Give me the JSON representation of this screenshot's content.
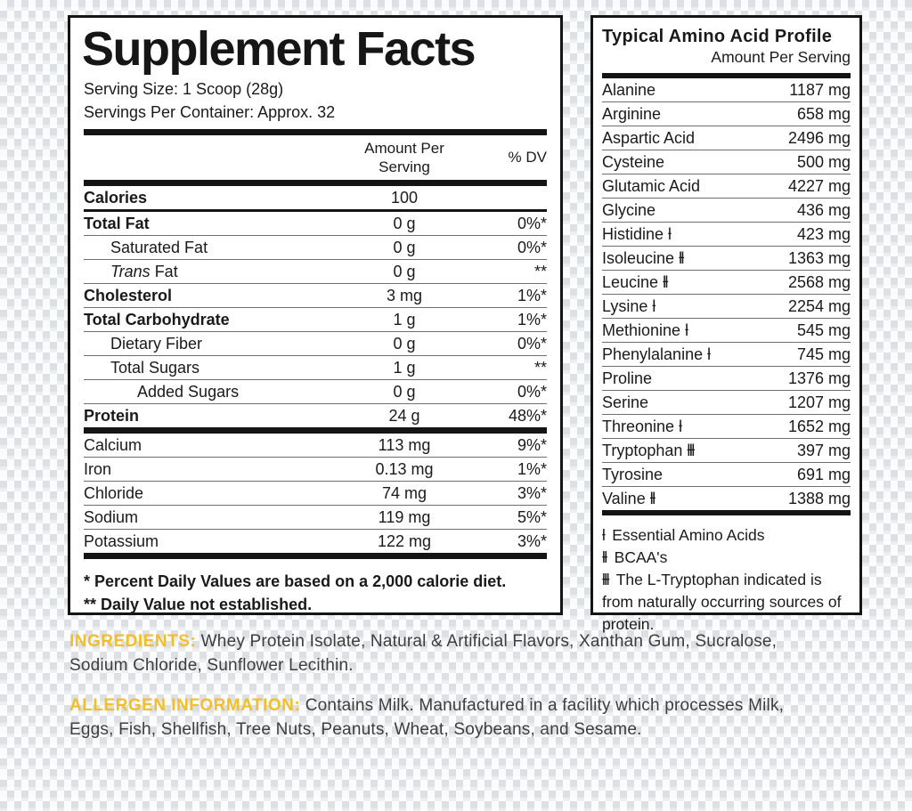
{
  "colors": {
    "gold": "#F2BF2A",
    "body_text": "#3d3d3d",
    "line": "#141414"
  },
  "supplement_facts": {
    "title": "Supplement Facts",
    "serving_size": "Serving Size: 1 Scoop (28g)",
    "servings_per_container": "Servings Per Container: Approx. 32",
    "columns": {
      "amount_line1": "Amount Per",
      "amount_line2": "Serving",
      "dv": "% DV"
    },
    "main_rows": [
      {
        "name": "Calories",
        "amount": "100",
        "dv": "",
        "bold": true,
        "indent": 0,
        "sep": "med"
      },
      {
        "name": "Total Fat",
        "amount": "0 g",
        "dv": "0%*",
        "bold": true,
        "indent": 0,
        "sep": "thin"
      },
      {
        "name": "Saturated Fat",
        "amount": "0 g",
        "dv": "0%*",
        "bold": false,
        "indent": 1,
        "sep": "thin"
      },
      {
        "name": "Trans Fat",
        "italic_word": "Trans",
        "amount": "0 g",
        "dv": "**",
        "bold": false,
        "indent": 1,
        "sep": "thin"
      },
      {
        "name": "Cholesterol",
        "amount": "3 mg",
        "dv": "1%*",
        "bold": true,
        "indent": 0,
        "sep": "thin"
      },
      {
        "name": "Total Carbohydrate",
        "amount": "1 g",
        "dv": "1%*",
        "bold": true,
        "indent": 0,
        "sep": "thin"
      },
      {
        "name": "Dietary Fiber",
        "amount": "0 g",
        "dv": "0%*",
        "bold": false,
        "indent": 1,
        "sep": "thin"
      },
      {
        "name": "Total Sugars",
        "amount": "1 g",
        "dv": "**",
        "bold": false,
        "indent": 1,
        "sep": "thin"
      },
      {
        "name": "Added Sugars",
        "amount": "0 g",
        "dv": "0%*",
        "bold": false,
        "indent": 2,
        "sep": "thin"
      },
      {
        "name": "Protein",
        "amount": "24 g",
        "dv": "48%*",
        "bold": true,
        "indent": 0,
        "sep": "none"
      }
    ],
    "mineral_rows": [
      {
        "name": "Calcium",
        "amount": "113 mg",
        "dv": "9%*",
        "bold": false,
        "indent": 0,
        "sep": "thin"
      },
      {
        "name": "Iron",
        "amount": "0.13 mg",
        "dv": "1%*",
        "bold": false,
        "indent": 0,
        "sep": "thin"
      },
      {
        "name": "Chloride",
        "amount": "74 mg",
        "dv": "3%*",
        "bold": false,
        "indent": 0,
        "sep": "thin"
      },
      {
        "name": "Sodium",
        "amount": "119 mg",
        "dv": "5%*",
        "bold": false,
        "indent": 0,
        "sep": "thin"
      },
      {
        "name": "Potassium",
        "amount": "122 mg",
        "dv": "3%*",
        "bold": false,
        "indent": 0,
        "sep": "none"
      }
    ],
    "footnotes": [
      "* Percent Daily Values are based on a 2,000 calorie diet.",
      "** Daily Value not established."
    ]
  },
  "amino_profile": {
    "title": "Typical Amino Acid Profile",
    "subtitle": "Amount Per Serving",
    "rows": [
      {
        "name": "Alanine",
        "mark": "",
        "amount": "1187 mg"
      },
      {
        "name": "Arginine",
        "mark": "",
        "amount": "658 mg"
      },
      {
        "name": "Aspartic Acid",
        "mark": "",
        "amount": "2496 mg"
      },
      {
        "name": "Cysteine",
        "mark": "",
        "amount": "500 mg"
      },
      {
        "name": "Glutamic Acid",
        "mark": "",
        "amount": "4227 mg"
      },
      {
        "name": "Glycine",
        "mark": "",
        "amount": "436 mg"
      },
      {
        "name": "Histidine",
        "mark": "ƚ",
        "amount": "423 mg"
      },
      {
        "name": "Isoleucine",
        "mark": "ƚƚ",
        "amount": "1363 mg"
      },
      {
        "name": "Leucine",
        "mark": "ƚƚ",
        "amount": "2568 mg"
      },
      {
        "name": "Lysine",
        "mark": "ƚ",
        "amount": "2254 mg"
      },
      {
        "name": "Methionine",
        "mark": "ƚ",
        "amount": "545 mg"
      },
      {
        "name": "Phenylalanine",
        "mark": "ƚ",
        "amount": "745 mg"
      },
      {
        "name": "Proline",
        "mark": "",
        "amount": "1376 mg"
      },
      {
        "name": "Serine",
        "mark": "",
        "amount": "1207 mg"
      },
      {
        "name": "Threonine",
        "mark": "ƚ",
        "amount": "1652 mg"
      },
      {
        "name": "Tryptophan",
        "mark": "ƚƚƚ",
        "amount": "397 mg"
      },
      {
        "name": "Tyrosine",
        "mark": "",
        "amount": "691 mg"
      },
      {
        "name": "Valine",
        "mark": "ƚƚ",
        "amount": "1388 mg"
      }
    ],
    "footnotes": [
      {
        "mark": "ƚ",
        "text": "Essential Amino Acids"
      },
      {
        "mark": "ƚƚ",
        "text": "BCAA's"
      },
      {
        "mark": "ƚƚƚ",
        "text": "The L-Tryptophan indicated is from naturally occurring sources of protein."
      }
    ]
  },
  "ingredients": {
    "label": "INGREDIENTS:",
    "text": "Whey Protein Isolate, Natural & Artificial Flavors, Xanthan Gum, Sucralose, Sodium Chloride, Sunflower Lecithin."
  },
  "allergen": {
    "label": "ALLERGEN INFORMATION:",
    "text": "Contains Milk. Manufactured in a facility which processes Milk, Eggs, Fish, Shellfish, Tree Nuts, Peanuts, Wheat, Soybeans, and Sesame."
  }
}
